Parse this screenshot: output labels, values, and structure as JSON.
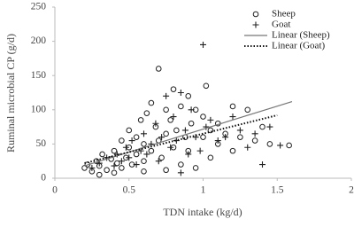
{
  "chart_data": {
    "type": "scatter",
    "xlabel": "TDN intake (kg/d)",
    "ylabel": "Ruminal microbial CP (g/d)",
    "xlim": [
      0,
      2
    ],
    "ylim": [
      0,
      250
    ],
    "xticks": [
      0,
      0.5,
      1,
      1.5,
      2
    ],
    "yticks": [
      0,
      50,
      100,
      150,
      200,
      250
    ],
    "series": [
      {
        "name": "Sheep",
        "marker": "circle",
        "color": "#222222",
        "x": [
          0.2,
          0.22,
          0.25,
          0.28,
          0.3,
          0.32,
          0.35,
          0.38,
          0.4,
          0.42,
          0.45,
          0.45,
          0.48,
          0.5,
          0.5,
          0.52,
          0.55,
          0.55,
          0.58,
          0.6,
          0.6,
          0.62,
          0.65,
          0.65,
          0.68,
          0.7,
          0.7,
          0.72,
          0.75,
          0.75,
          0.78,
          0.8,
          0.8,
          0.82,
          0.85,
          0.85,
          0.88,
          0.9,
          0.9,
          0.92,
          0.95,
          0.95,
          1.0,
          1.0,
          1.02,
          1.05,
          1.05,
          1.1,
          1.1,
          1.15,
          1.2,
          1.2,
          1.25,
          1.3,
          1.35,
          1.4,
          1.45,
          1.58,
          0.3,
          0.4,
          0.6,
          0.75
        ],
        "values": [
          15,
          20,
          10,
          25,
          18,
          35,
          12,
          28,
          40,
          22,
          55,
          15,
          30,
          45,
          70,
          20,
          60,
          35,
          85,
          50,
          25,
          95,
          40,
          110,
          75,
          160,
          55,
          30,
          100,
          65,
          85,
          130,
          45,
          70,
          105,
          20,
          60,
          120,
          40,
          80,
          100,
          15,
          60,
          90,
          135,
          70,
          30,
          50,
          80,
          65,
          105,
          40,
          60,
          100,
          55,
          75,
          50,
          48,
          5,
          8,
          10,
          12
        ]
      },
      {
        "name": "Goat",
        "marker": "plus",
        "color": "#222222",
        "x": [
          0.25,
          0.3,
          0.35,
          0.4,
          0.42,
          0.45,
          0.48,
          0.5,
          0.52,
          0.55,
          0.58,
          0.6,
          0.62,
          0.65,
          0.68,
          0.7,
          0.72,
          0.75,
          0.78,
          0.8,
          0.82,
          0.85,
          0.88,
          0.9,
          0.92,
          0.95,
          0.98,
          1.0,
          1.02,
          1.05,
          1.1,
          1.15,
          1.2,
          1.25,
          1.3,
          1.35,
          1.4,
          1.45,
          1.52,
          0.85
        ],
        "values": [
          15,
          22,
          30,
          18,
          35,
          25,
          45,
          30,
          55,
          20,
          40,
          65,
          35,
          50,
          80,
          25,
          60,
          120,
          45,
          90,
          55,
          125,
          70,
          35,
          100,
          60,
          40,
          195,
          75,
          85,
          55,
          60,
          90,
          70,
          45,
          65,
          20,
          75,
          48,
          8
        ]
      }
    ],
    "lines": [
      {
        "name": "Linear (Sheep)",
        "style": "solid",
        "color": "#777777",
        "x": [
          0.2,
          1.6
        ],
        "values": [
          18,
          112
        ]
      },
      {
        "name": "Linear (Goat)",
        "style": "dotted",
        "color": "#111111",
        "x": [
          0.2,
          1.5
        ],
        "values": [
          22,
          92
        ]
      }
    ]
  }
}
